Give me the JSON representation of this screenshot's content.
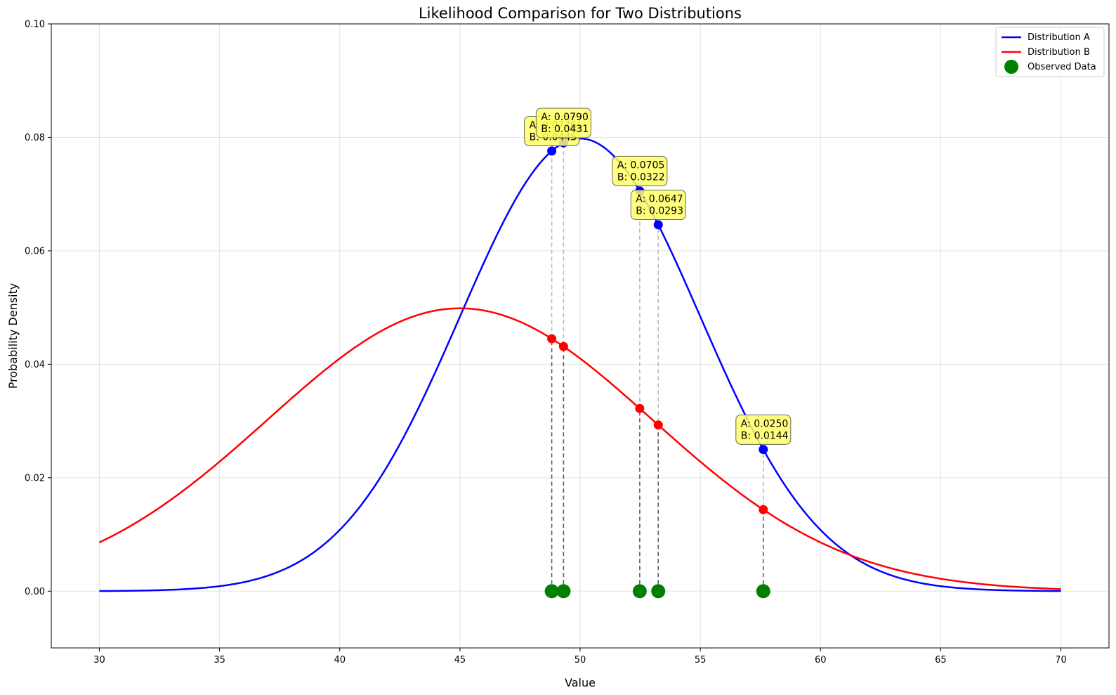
{
  "chart_data": {
    "type": "line",
    "title": "Likelihood Comparison for Two Distributions",
    "xlabel": "Value",
    "ylabel": "Probability Density",
    "xlim": [
      28,
      72
    ],
    "ylim": [
      -0.01,
      0.1
    ],
    "xticks": [
      30,
      35,
      40,
      45,
      50,
      55,
      60,
      65,
      70
    ],
    "yticks": [
      0.0,
      0.02,
      0.04,
      0.06,
      0.08,
      0.1
    ],
    "ytick_labels": [
      "0.00",
      "0.02",
      "0.04",
      "0.06",
      "0.08",
      "0.10"
    ],
    "grid": true,
    "legend_position": "top-right",
    "series": [
      {
        "name": "Distribution A",
        "color": "#0000ff",
        "distribution": "normal",
        "mean": 50,
        "std": 5,
        "x_range": [
          30,
          70
        ]
      },
      {
        "name": "Distribution B",
        "color": "#ff0000",
        "distribution": "normal",
        "mean": 45,
        "std": 8,
        "x_range": [
          30,
          70
        ]
      }
    ],
    "observed": {
      "name": "Observed Data",
      "color": "#008000",
      "x": [
        48.82,
        49.31,
        52.48,
        53.25,
        57.62
      ]
    },
    "annotations": [
      {
        "a": "A: 0.0776",
        "b": "B: 0.0445"
      },
      {
        "a": "A: 0.0790",
        "b": "B: 0.0431"
      },
      {
        "a": "A: 0.0705",
        "b": "B: 0.0322"
      },
      {
        "a": "A: 0.0647",
        "b": "B: 0.0293"
      },
      {
        "a": "A: 0.0250",
        "b": "B: 0.0144"
      }
    ]
  }
}
